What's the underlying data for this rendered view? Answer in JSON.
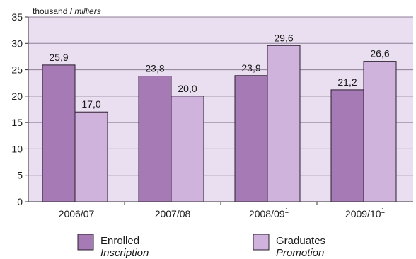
{
  "colors": {
    "plot_background": "#e9dff0",
    "enrolled": "#a67ab5",
    "graduates": "#cfb3dc",
    "bar_outline": "#2a1f2e",
    "gridline": "#8e7f96"
  },
  "chart_data": {
    "type": "bar",
    "unit_label": {
      "regular": "thousand / ",
      "italic": "milliers"
    },
    "categories": [
      {
        "label": "2006/07",
        "note": ""
      },
      {
        "label": "2007/08",
        "note": ""
      },
      {
        "label": "2008/09",
        "note": "1"
      },
      {
        "label": "2009/10",
        "note": "1"
      }
    ],
    "series": [
      {
        "name": "Enrolled",
        "name_italic": "Inscription",
        "color": "#a67ab5",
        "values": [
          25.9,
          23.8,
          23.9,
          21.2
        ],
        "value_labels": [
          "25,9",
          "23,8",
          "23,9",
          "21,2"
        ]
      },
      {
        "name": "Graduates",
        "name_italic": "Promotion",
        "color": "#cfb3dc",
        "values": [
          17.0,
          20.0,
          29.6,
          26.6
        ],
        "value_labels": [
          "17,0",
          "20,0",
          "29,6",
          "26,6"
        ]
      }
    ],
    "ylim": [
      0,
      35
    ],
    "yticks": [
      0,
      5,
      10,
      15,
      20,
      25,
      30,
      35
    ],
    "grid": true,
    "legend_position": "bottom"
  }
}
